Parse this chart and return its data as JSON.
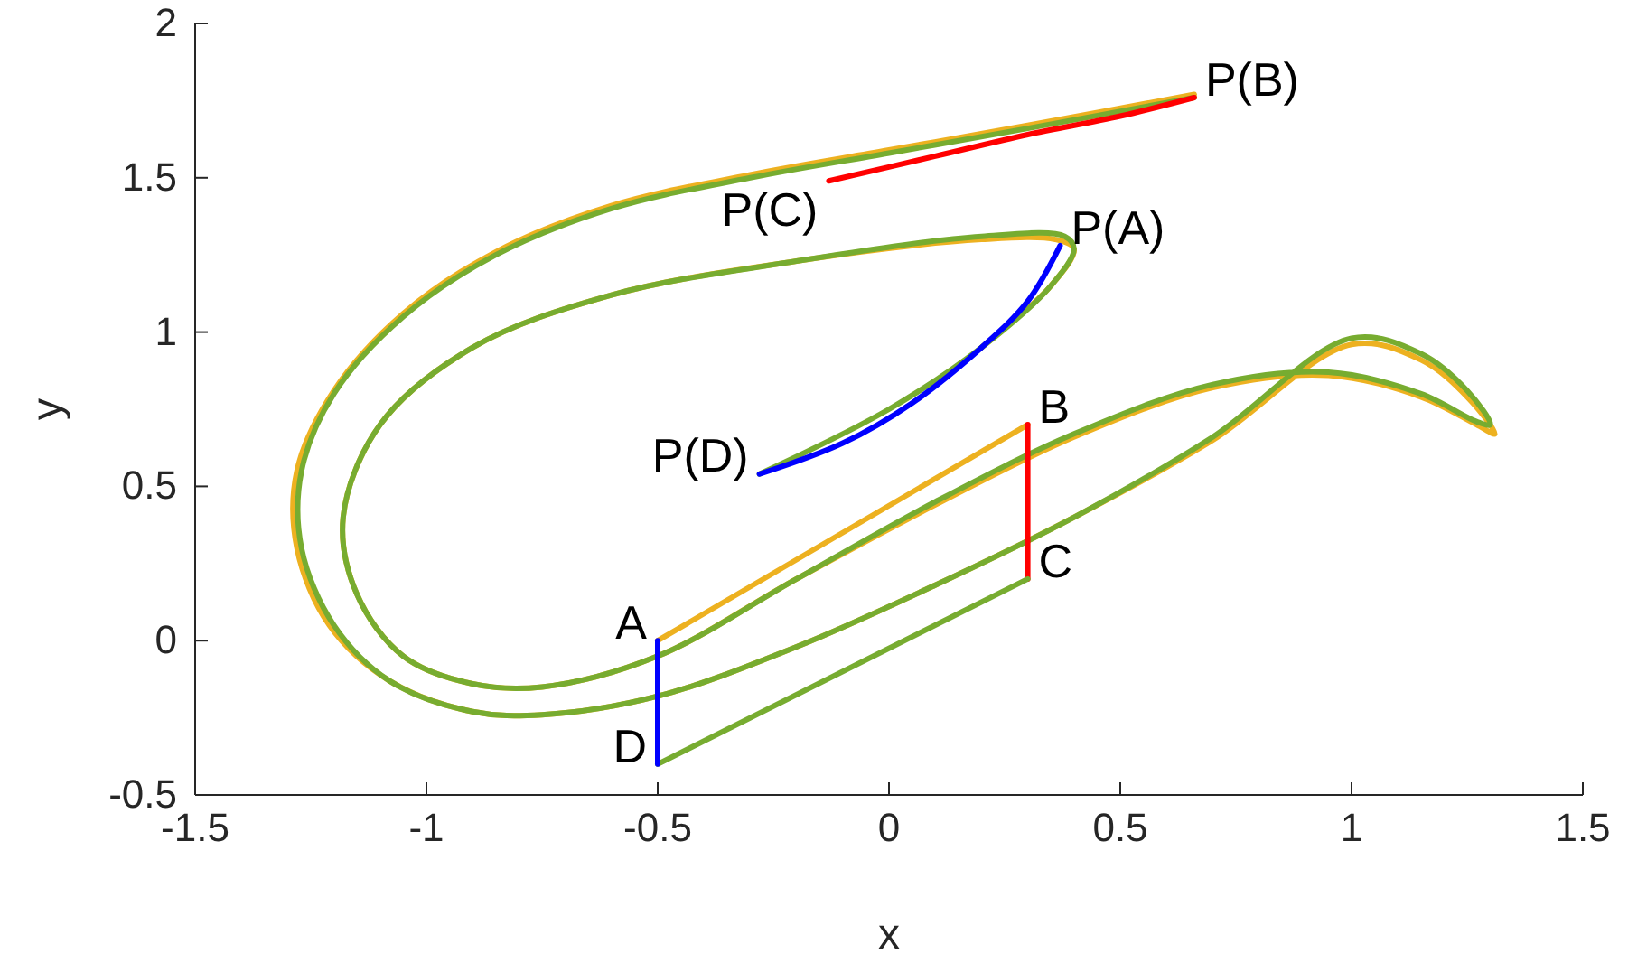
{
  "chart_data": {
    "type": "line",
    "xlabel": "x",
    "ylabel": "y",
    "xlim": [
      -1.5,
      1.5
    ],
    "ylim": [
      -0.5,
      2
    ],
    "xticks": [
      -1.5,
      -1,
      -0.5,
      0,
      0.5,
      1,
      1.5
    ],
    "yticks": [
      -0.5,
      0,
      0.5,
      1,
      1.5,
      2
    ],
    "grid": false,
    "marker": "none",
    "line_style": "solid",
    "series": [
      {
        "color": "#edb120",
        "x": [
          0.66,
          0.3,
          0,
          -0.3,
          -0.6,
          -0.85,
          -1.05,
          -1.2,
          -1.28,
          -1.28,
          -1.21,
          -1.08,
          -0.9,
          -0.75,
          -0.5,
          -0.2,
          0.1,
          0.4,
          0.7,
          1.0,
          1.15,
          1.25,
          1.31,
          1.27,
          1.15,
          0.95,
          0.7,
          0.4,
          0.1,
          -0.2,
          -0.5,
          -0.75,
          -0.9,
          -1.05,
          -1.15,
          -1.18,
          -1.1,
          -0.9,
          -0.6,
          -0.2,
          0.2,
          0.36,
          0.4,
          0.35,
          0.2
        ],
        "values": [
          1.77,
          1.67,
          1.59,
          1.51,
          1.41,
          1.26,
          1.06,
          0.81,
          0.55,
          0.3,
          0.05,
          -0.13,
          -0.23,
          -0.24,
          -0.18,
          -0.02,
          0.18,
          0.4,
          0.65,
          0.96,
          0.91,
          0.79,
          0.67,
          0.7,
          0.79,
          0.86,
          0.82,
          0.66,
          0.44,
          0.2,
          -0.05,
          -0.15,
          -0.14,
          -0.05,
          0.15,
          0.4,
          0.7,
          0.95,
          1.12,
          1.23,
          1.3,
          1.3,
          1.27,
          1.15,
          0.95
        ]
      },
      {
        "color": "#77ac30",
        "x": [
          0.66,
          0.3,
          0,
          -0.3,
          -0.6,
          -0.85,
          -1.05,
          -1.2,
          -1.27,
          -1.27,
          -1.2,
          -1.08,
          -0.9,
          -0.75,
          -0.5,
          -0.2,
          0.1,
          0.4,
          0.7,
          1.0,
          1.15,
          1.25,
          1.3,
          1.27,
          1.15,
          0.95,
          0.7,
          0.4,
          0.1,
          -0.2,
          -0.5,
          -0.75,
          -0.9,
          -1.05,
          -1.15,
          -1.18,
          -1.1,
          -0.9,
          -0.6,
          -0.2,
          0.2,
          0.38,
          0.4,
          0.35,
          0.2,
          0,
          -0.28
        ],
        "values": [
          1.76,
          1.66,
          1.58,
          1.5,
          1.4,
          1.25,
          1.05,
          0.8,
          0.55,
          0.3,
          0.05,
          -0.13,
          -0.23,
          -0.24,
          -0.18,
          -0.02,
          0.18,
          0.4,
          0.66,
          0.98,
          0.93,
          0.81,
          0.7,
          0.71,
          0.8,
          0.87,
          0.83,
          0.67,
          0.45,
          0.2,
          -0.05,
          -0.15,
          -0.14,
          -0.05,
          0.15,
          0.4,
          0.7,
          0.95,
          1.12,
          1.23,
          1.31,
          1.31,
          1.27,
          1.15,
          0.95,
          0.75,
          0.54
        ]
      },
      {
        "color": "#edb120",
        "x": [
          -0.5,
          0.3
        ],
        "values": [
          0,
          0.7
        ]
      },
      {
        "color": "#ff0000",
        "x": [
          0.3,
          0.3
        ],
        "values": [
          0.7,
          0.2
        ]
      },
      {
        "color": "#77ac30",
        "x": [
          0.3,
          -0.5
        ],
        "values": [
          0.2,
          -0.4
        ]
      },
      {
        "color": "#0000ff",
        "x": [
          -0.5,
          -0.5
        ],
        "values": [
          -0.4,
          0
        ]
      },
      {
        "color": "#ff0000",
        "x": [
          -0.13,
          0.1,
          0.3,
          0.5,
          0.66
        ],
        "values": [
          1.49,
          1.57,
          1.64,
          1.7,
          1.76
        ]
      },
      {
        "color": "#0000ff",
        "x": [
          -0.28,
          -0.1,
          0.05,
          0.2,
          0.3,
          0.37
        ],
        "values": [
          0.54,
          0.64,
          0.77,
          0.95,
          1.1,
          1.28
        ]
      }
    ],
    "annotations": [
      {
        "text": "A",
        "x": -0.5,
        "y": 0
      },
      {
        "text": "B",
        "x": 0.3,
        "y": 0.7
      },
      {
        "text": "C",
        "x": 0.3,
        "y": 0.2
      },
      {
        "text": "D",
        "x": -0.5,
        "y": -0.4
      },
      {
        "text": "P(A)",
        "x": 0.37,
        "y": 1.28
      },
      {
        "text": "P(B)",
        "x": 0.66,
        "y": 1.76
      },
      {
        "text": "P(C)",
        "x": -0.13,
        "y": 1.49
      },
      {
        "text": "P(D)",
        "x": -0.28,
        "y": 0.54
      }
    ]
  }
}
